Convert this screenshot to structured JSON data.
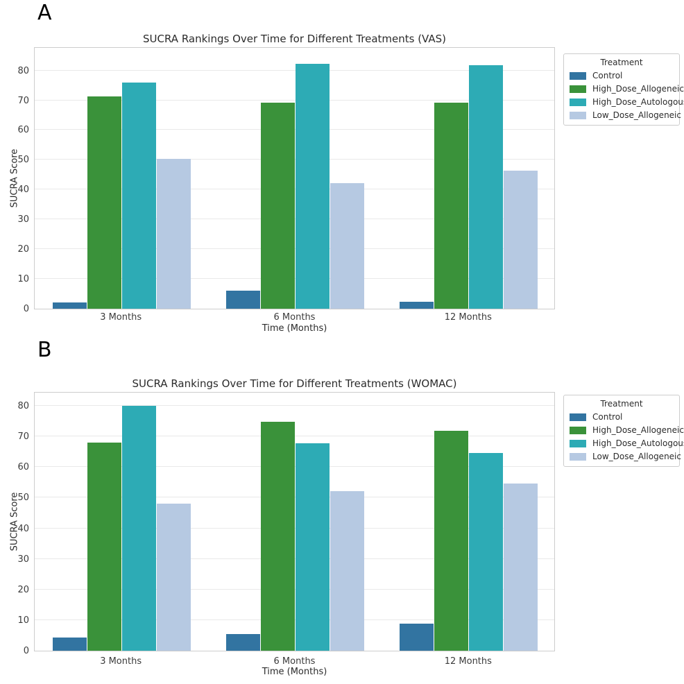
{
  "figure": {
    "background": "#ffffff"
  },
  "style_colors": {
    "grid": "#e9e9e9",
    "spine": "#cccccc",
    "text": "#2b2b2b"
  },
  "chart_data": [
    {
      "type": "bar",
      "panel_label": "A",
      "title": "SUCRA Rankings Over Time for Different Treatments (VAS)",
      "xlabel": "Time (Months)",
      "ylabel": "SUCRA Score",
      "categories": [
        "3 Months",
        "6 Months",
        "12 Months"
      ],
      "series": [
        {
          "name": "Control",
          "color": "#3274a1",
          "values": [
            2.0,
            6.0,
            2.3
          ]
        },
        {
          "name": "High_Dose_Allogeneic",
          "color": "#3a923a",
          "values": [
            71.2,
            69.3,
            69.2
          ]
        },
        {
          "name": "High_Dose_Autologous",
          "color": "#2dabb5",
          "values": [
            76.0,
            82.2,
            81.7
          ]
        },
        {
          "name": "Low_Dose_Allogeneic",
          "color": "#b6c9e2",
          "values": [
            50.4,
            42.1,
            46.4
          ]
        }
      ],
      "yticks": [
        0,
        10,
        20,
        30,
        40,
        50,
        60,
        70,
        80
      ],
      "ylim": [
        0,
        87.6
      ],
      "grid": true,
      "legend": {
        "title": "Treatment",
        "position": "outside-right"
      }
    },
    {
      "type": "bar",
      "panel_label": "B",
      "title": "SUCRA Rankings Over Time for Different Treatments (WOMAC)",
      "xlabel": "Time (Months)",
      "ylabel": "SUCRA Score",
      "categories": [
        "3 Months",
        "6 Months",
        "12 Months"
      ],
      "series": [
        {
          "name": "Control",
          "color": "#3274a1",
          "values": [
            4.3,
            5.5,
            8.8
          ]
        },
        {
          "name": "High_Dose_Allogeneic",
          "color": "#3a923a",
          "values": [
            67.9,
            74.7,
            71.8
          ]
        },
        {
          "name": "High_Dose_Autologous",
          "color": "#2dabb5",
          "values": [
            79.9,
            67.7,
            64.7
          ]
        },
        {
          "name": "Low_Dose_Allogeneic",
          "color": "#b6c9e2",
          "values": [
            48.0,
            52.1,
            54.7
          ]
        }
      ],
      "yticks": [
        0,
        10,
        20,
        30,
        40,
        50,
        60,
        70,
        80
      ],
      "ylim": [
        0,
        84.3
      ],
      "grid": true,
      "legend": {
        "title": "Treatment",
        "position": "outside-right"
      }
    }
  ]
}
